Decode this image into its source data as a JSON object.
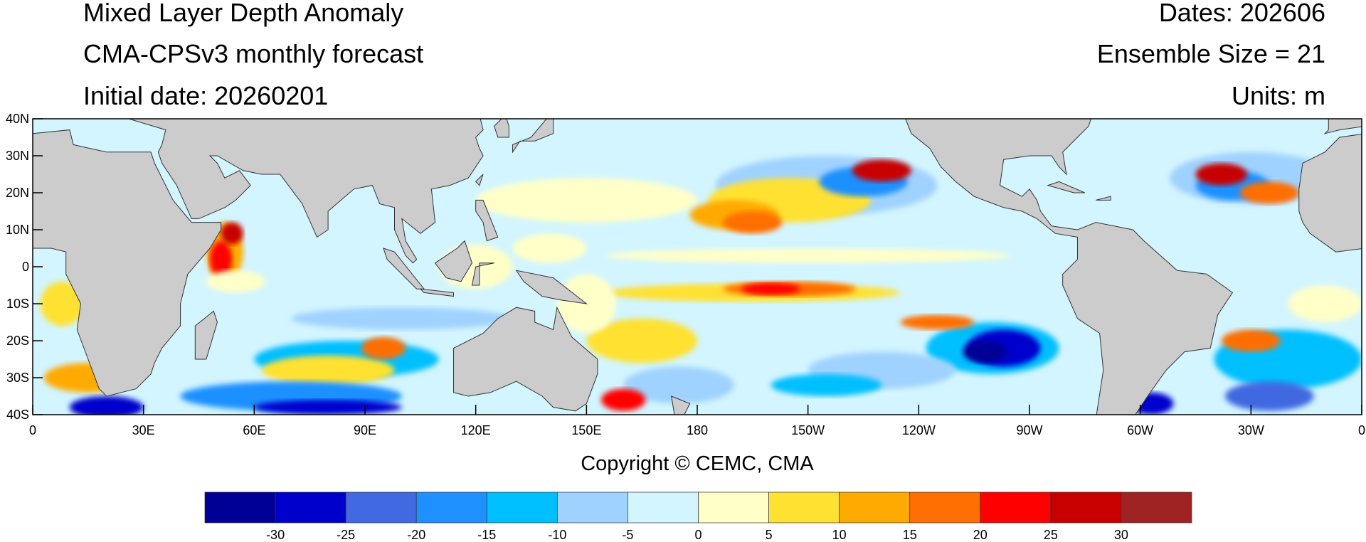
{
  "header": {
    "title": "Mixed Layer Depth Anomaly",
    "subtitle": "CMA-CPSv3 monthly forecast",
    "initial_date": "Initial date: 20260201",
    "dates": "Dates: 202606",
    "ensemble": "Ensemble Size = 21",
    "units": "Units: m"
  },
  "map": {
    "projection": "cylindrical equidistant",
    "lon_range": [
      0,
      360
    ],
    "lat_range": [
      -40,
      40
    ],
    "land_color": "#cccccc",
    "lat_labels": [
      "40N",
      "30N",
      "20N",
      "10N",
      "0",
      "10S",
      "20S",
      "30S",
      "40S"
    ],
    "lon_labels": [
      "0",
      "30E",
      "60E",
      "90E",
      "120E",
      "150E",
      "180",
      "150W",
      "120W",
      "90W",
      "60W",
      "30W",
      "0"
    ]
  },
  "copyright": "Copyright © CEMC, CMA",
  "colorbar": {
    "labels": [
      "-30",
      "-25",
      "-20",
      "-15",
      "-10",
      "-5",
      "0",
      "5",
      "10",
      "15",
      "20",
      "25",
      "30"
    ],
    "colors": [
      "#000096",
      "#0000cd",
      "#4169e1",
      "#1e90ff",
      "#00bfff",
      "#a0d2ff",
      "#d2f5ff",
      "#ffffc8",
      "#ffe132",
      "#ffaa00",
      "#ff6e00",
      "#ff0000",
      "#c80000",
      "#a02323"
    ]
  }
}
